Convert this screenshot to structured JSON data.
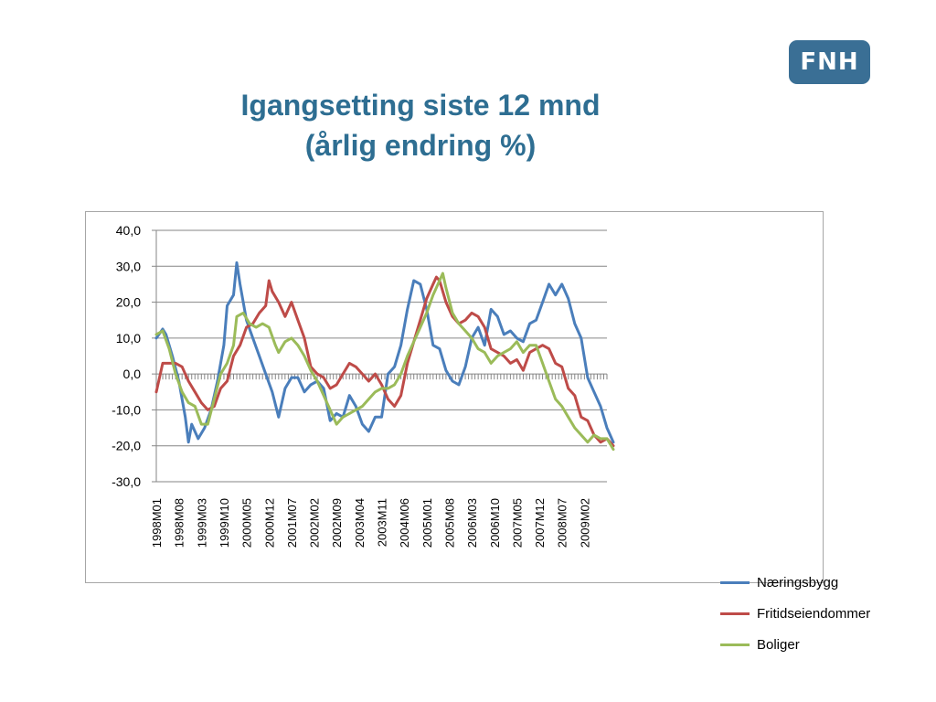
{
  "header": {
    "title_line1": "Igangsetting siste 12 mnd",
    "title_line2": "(årlig endring %)",
    "logo_text": "FNH",
    "logo_color": "#3a6f95",
    "title_color": "#2e6e92"
  },
  "chart_data": {
    "type": "line",
    "x_tick_labels": [
      "1998M01",
      "1998M08",
      "1999M03",
      "1999M10",
      "2000M05",
      "2000M12",
      "2001M07",
      "2002M02",
      "2002M09",
      "2003M04",
      "2003M11",
      "2004M06",
      "2005M01",
      "2005M08",
      "2006M03",
      "2006M10",
      "2007M05",
      "2007M12",
      "2008M07",
      "2009M02"
    ],
    "x_start": "1998M01",
    "x_end": "2009M08",
    "y_tick_labels": [
      "40,0",
      "30,0",
      "20,0",
      "10,0",
      "0,0",
      "-10,0",
      "-20,0",
      "-30,0"
    ],
    "ylim": [
      -30,
      40
    ],
    "grid": true,
    "legend_position": "right",
    "series": [
      {
        "name": "Næringsbygg",
        "color": "#4a7ebb",
        "points": [
          [
            0,
            10
          ],
          [
            2,
            12.5
          ],
          [
            3,
            11
          ],
          [
            5,
            5
          ],
          [
            7,
            -2
          ],
          [
            9,
            -12
          ],
          [
            10,
            -19
          ],
          [
            11,
            -14
          ],
          [
            13,
            -18
          ],
          [
            15,
            -15
          ],
          [
            17,
            -10
          ],
          [
            19,
            -2
          ],
          [
            21,
            8
          ],
          [
            22,
            19
          ],
          [
            24,
            22
          ],
          [
            25,
            31
          ],
          [
            26,
            25
          ],
          [
            28,
            15
          ],
          [
            30,
            10
          ],
          [
            32,
            5
          ],
          [
            34,
            0
          ],
          [
            36,
            -5
          ],
          [
            38,
            -12
          ],
          [
            40,
            -4
          ],
          [
            42,
            -1
          ],
          [
            44,
            -1
          ],
          [
            46,
            -5
          ],
          [
            48,
            -3
          ],
          [
            50,
            -2
          ],
          [
            52,
            -4
          ],
          [
            54,
            -13
          ],
          [
            56,
            -11
          ],
          [
            58,
            -12
          ],
          [
            60,
            -6
          ],
          [
            62,
            -9
          ],
          [
            64,
            -14
          ],
          [
            66,
            -16
          ],
          [
            68,
            -12
          ],
          [
            70,
            -12
          ],
          [
            72,
            0
          ],
          [
            74,
            2
          ],
          [
            76,
            8
          ],
          [
            78,
            18
          ],
          [
            80,
            26
          ],
          [
            82,
            25
          ],
          [
            84,
            18
          ],
          [
            86,
            8
          ],
          [
            88,
            7
          ],
          [
            90,
            1
          ],
          [
            92,
            -2
          ],
          [
            94,
            -3
          ],
          [
            96,
            2
          ],
          [
            98,
            10
          ],
          [
            100,
            13
          ],
          [
            102,
            8
          ],
          [
            104,
            18
          ],
          [
            106,
            16
          ],
          [
            108,
            11
          ],
          [
            110,
            12
          ],
          [
            112,
            10
          ],
          [
            114,
            9
          ],
          [
            116,
            14
          ],
          [
            118,
            15
          ],
          [
            120,
            20
          ],
          [
            122,
            25
          ],
          [
            124,
            22
          ],
          [
            126,
            25
          ],
          [
            128,
            21
          ],
          [
            130,
            14
          ],
          [
            132,
            10
          ],
          [
            134,
            -1
          ],
          [
            136,
            -5
          ],
          [
            138,
            -9
          ],
          [
            140,
            -15
          ],
          [
            141,
            -17
          ],
          [
            142,
            -19
          ]
        ]
      },
      {
        "name": "Fritidseiendommer",
        "color": "#be4b48",
        "points": [
          [
            0,
            -5
          ],
          [
            2,
            3
          ],
          [
            4,
            3
          ],
          [
            6,
            3
          ],
          [
            8,
            2
          ],
          [
            10,
            -2
          ],
          [
            12,
            -5
          ],
          [
            14,
            -8
          ],
          [
            16,
            -10
          ],
          [
            18,
            -9
          ],
          [
            20,
            -4
          ],
          [
            22,
            -2
          ],
          [
            24,
            5
          ],
          [
            26,
            8
          ],
          [
            28,
            13
          ],
          [
            30,
            14
          ],
          [
            32,
            17
          ],
          [
            34,
            19
          ],
          [
            35,
            26
          ],
          [
            36,
            23
          ],
          [
            38,
            20
          ],
          [
            40,
            16
          ],
          [
            42,
            20
          ],
          [
            44,
            15
          ],
          [
            46,
            10
          ],
          [
            48,
            2
          ],
          [
            50,
            0
          ],
          [
            52,
            -1
          ],
          [
            54,
            -4
          ],
          [
            56,
            -3
          ],
          [
            58,
            0
          ],
          [
            60,
            3
          ],
          [
            62,
            2
          ],
          [
            64,
            0
          ],
          [
            66,
            -2
          ],
          [
            68,
            0
          ],
          [
            70,
            -3
          ],
          [
            72,
            -7
          ],
          [
            74,
            -9
          ],
          [
            76,
            -6
          ],
          [
            78,
            3
          ],
          [
            80,
            9
          ],
          [
            82,
            15
          ],
          [
            84,
            21
          ],
          [
            86,
            25
          ],
          [
            87,
            27
          ],
          [
            88,
            26
          ],
          [
            90,
            20
          ],
          [
            92,
            16
          ],
          [
            94,
            14
          ],
          [
            96,
            15
          ],
          [
            98,
            17
          ],
          [
            100,
            16
          ],
          [
            102,
            13
          ],
          [
            104,
            7
          ],
          [
            106,
            6
          ],
          [
            108,
            5
          ],
          [
            110,
            3
          ],
          [
            112,
            4
          ],
          [
            114,
            1
          ],
          [
            116,
            6
          ],
          [
            118,
            7
          ],
          [
            120,
            8
          ],
          [
            122,
            7
          ],
          [
            124,
            3
          ],
          [
            126,
            2
          ],
          [
            128,
            -4
          ],
          [
            130,
            -6
          ],
          [
            132,
            -12
          ],
          [
            134,
            -13
          ],
          [
            136,
            -17
          ],
          [
            138,
            -19
          ],
          [
            140,
            -18
          ],
          [
            142,
            -20
          ]
        ]
      },
      {
        "name": "Boliger",
        "color": "#9bbb59",
        "points": [
          [
            0,
            11
          ],
          [
            2,
            12
          ],
          [
            4,
            7
          ],
          [
            6,
            0
          ],
          [
            8,
            -5
          ],
          [
            10,
            -8
          ],
          [
            12,
            -9
          ],
          [
            14,
            -14
          ],
          [
            16,
            -14
          ],
          [
            18,
            -7
          ],
          [
            20,
            0
          ],
          [
            22,
            3
          ],
          [
            24,
            8
          ],
          [
            25,
            16
          ],
          [
            27,
            17
          ],
          [
            29,
            14
          ],
          [
            31,
            13
          ],
          [
            33,
            14
          ],
          [
            35,
            13
          ],
          [
            37,
            8
          ],
          [
            38,
            6
          ],
          [
            40,
            9
          ],
          [
            42,
            10
          ],
          [
            44,
            8
          ],
          [
            46,
            5
          ],
          [
            48,
            1
          ],
          [
            50,
            -2
          ],
          [
            52,
            -6
          ],
          [
            54,
            -10
          ],
          [
            56,
            -14
          ],
          [
            58,
            -12
          ],
          [
            60,
            -11
          ],
          [
            62,
            -10
          ],
          [
            64,
            -9
          ],
          [
            66,
            -7
          ],
          [
            68,
            -5
          ],
          [
            70,
            -4
          ],
          [
            72,
            -4
          ],
          [
            74,
            -3
          ],
          [
            76,
            0
          ],
          [
            78,
            5
          ],
          [
            80,
            9
          ],
          [
            82,
            13
          ],
          [
            84,
            17
          ],
          [
            86,
            22
          ],
          [
            88,
            26
          ],
          [
            89,
            28
          ],
          [
            90,
            24
          ],
          [
            92,
            17
          ],
          [
            94,
            14
          ],
          [
            96,
            12
          ],
          [
            98,
            10
          ],
          [
            100,
            7
          ],
          [
            102,
            6
          ],
          [
            104,
            3
          ],
          [
            106,
            5
          ],
          [
            108,
            6
          ],
          [
            110,
            7
          ],
          [
            112,
            9
          ],
          [
            114,
            6
          ],
          [
            116,
            8
          ],
          [
            118,
            8
          ],
          [
            120,
            3
          ],
          [
            122,
            -2
          ],
          [
            124,
            -7
          ],
          [
            126,
            -9
          ],
          [
            128,
            -12
          ],
          [
            130,
            -15
          ],
          [
            132,
            -17
          ],
          [
            134,
            -19
          ],
          [
            136,
            -17
          ],
          [
            138,
            -18
          ],
          [
            140,
            -18
          ],
          [
            142,
            -21
          ]
        ]
      }
    ]
  }
}
